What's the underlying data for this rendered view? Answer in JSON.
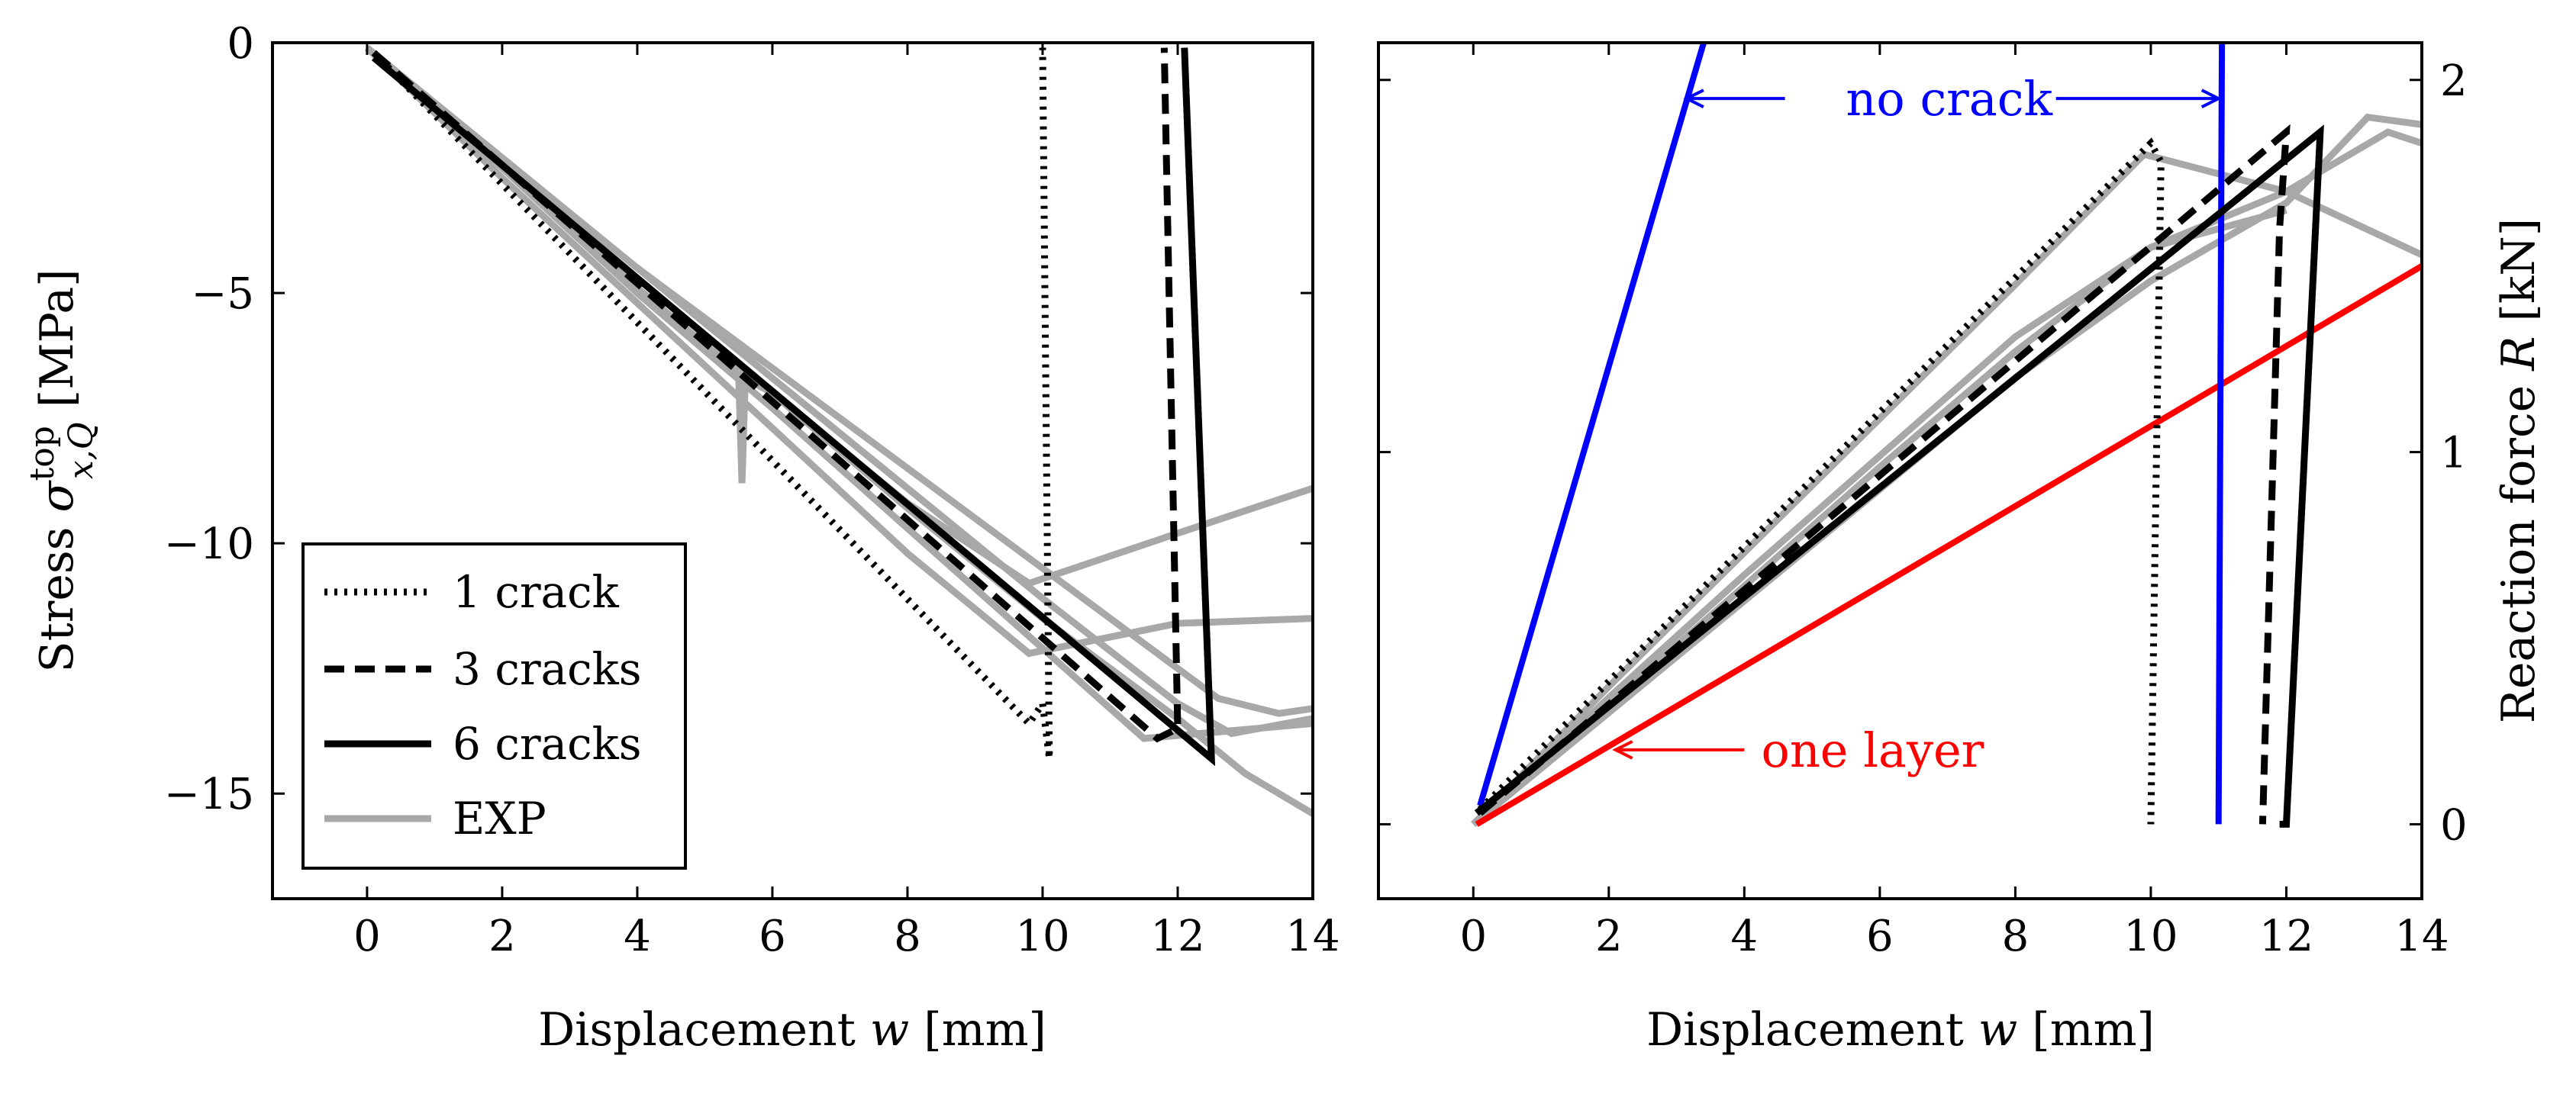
{
  "figure": {
    "description_free": true
  },
  "chart_data": [
    {
      "type": "line",
      "name": "left-panel",
      "xlabel": "Displacement w [mm]",
      "ylabel": "Stress σ top x,Q [MPa]",
      "ylabel_parts": {
        "prefix": "Stress ",
        "symbol": "σ",
        "sup": "top",
        "sub": "x,Q",
        "unit": " [MPa]"
      },
      "xlabel_parts": {
        "prefix": "Displacement ",
        "symbol": "w",
        "unit": " [mm]"
      },
      "xlim": [
        -1.4,
        14
      ],
      "ylim": [
        -17.1,
        0
      ],
      "x_ticks": [
        0,
        2,
        4,
        6,
        8,
        10,
        12,
        14
      ],
      "x_tick_labels": [
        "0",
        "2",
        "4",
        "6",
        "8",
        "10",
        "12",
        "14"
      ],
      "y_ticks": [
        0,
        -5,
        -10,
        -15
      ],
      "y_tick_labels": [
        "0",
        "−5",
        "−10",
        "−15"
      ],
      "legend": {
        "placement": "bottom-left",
        "entries": [
          {
            "label": "1 crack",
            "style": "dotted"
          },
          {
            "label": "3 cracks",
            "style": "dashed"
          },
          {
            "label": "6 cracks",
            "style": "solid"
          },
          {
            "label": "EXP",
            "style": "gray"
          }
        ]
      },
      "series": [
        {
          "name": "EXP 1",
          "style": "gray",
          "x": [
            0,
            2,
            4,
            5.5,
            5.55,
            5.6,
            6,
            8,
            10,
            12,
            13,
            14
          ],
          "y": [
            -0.1,
            -2.5,
            -4.9,
            -6.6,
            -8.8,
            -6.7,
            -7.0,
            -9.3,
            -11.5,
            -13.5,
            -14.6,
            -15.4
          ]
        },
        {
          "name": "EXP 2",
          "style": "gray",
          "x": [
            0,
            2,
            4,
            6,
            8,
            10,
            12,
            12.6,
            13.5,
            14
          ],
          "y": [
            -0.1,
            -2.3,
            -4.5,
            -6.5,
            -8.5,
            -10.5,
            -12.5,
            -13.1,
            -13.4,
            -13.3
          ]
        },
        {
          "name": "EXP 3",
          "style": "gray",
          "x": [
            0,
            2,
            4,
            6,
            8,
            9.8,
            12,
            14
          ],
          "y": [
            -0.1,
            -2.7,
            -5.2,
            -7.7,
            -10.2,
            -12.2,
            -11.6,
            -11.5
          ]
        },
        {
          "name": "EXP 4",
          "style": "gray",
          "x": [
            0,
            2,
            4,
            6,
            8,
            9.8,
            12,
            14
          ],
          "y": [
            -0.1,
            -2.4,
            -4.7,
            -7.0,
            -9.2,
            -10.8,
            -9.8,
            -8.9
          ]
        },
        {
          "name": "EXP 5",
          "style": "gray",
          "x": [
            0,
            2,
            4,
            6,
            8,
            10,
            12,
            12.8,
            14
          ],
          "y": [
            -0.1,
            -2.3,
            -4.5,
            -6.7,
            -8.9,
            -11.1,
            -13.2,
            -13.8,
            -13.5
          ]
        },
        {
          "name": "EXP 6",
          "style": "gray",
          "x": [
            0,
            2,
            4,
            6,
            8,
            10,
            11.5,
            14
          ],
          "y": [
            -0.1,
            -2.5,
            -5.0,
            -7.3,
            -9.7,
            -12.1,
            -13.9,
            -13.6
          ]
        },
        {
          "name": "1 crack",
          "style": "dotted",
          "x": [
            0.1,
            9.8,
            10.0,
            10.1,
            10.1,
            10.0
          ],
          "y": [
            -0.2,
            -13.6,
            -13.2,
            -14.3,
            -14.3,
            -0.1
          ]
        },
        {
          "name": "3 cracks",
          "style": "dashed",
          "x": [
            0.1,
            11.7,
            12.0,
            11.8
          ],
          "y": [
            -0.2,
            -13.9,
            -13.7,
            -0.1
          ]
        },
        {
          "name": "6 cracks",
          "style": "solid",
          "x": [
            0.1,
            12.5,
            12.1
          ],
          "y": [
            -0.3,
            -14.3,
            -0.1
          ]
        }
      ]
    },
    {
      "type": "line",
      "name": "right-panel",
      "xlabel": "Displacement w [mm]",
      "ylabel": "Reaction force R [kN]",
      "ylabel_parts": {
        "prefix": "Reaction force ",
        "symbol": "R",
        "unit": " [kN]"
      },
      "xlabel_parts": {
        "prefix": "Displacement ",
        "symbol": "w",
        "unit": " [mm]"
      },
      "xlim": [
        -1.4,
        14
      ],
      "ylim": [
        -0.2,
        2.1
      ],
      "x_ticks": [
        0,
        2,
        4,
        6,
        8,
        10,
        12,
        14
      ],
      "x_tick_labels": [
        "0",
        "2",
        "4",
        "6",
        "8",
        "10",
        "12",
        "14"
      ],
      "y_ticks": [
        0,
        1,
        2
      ],
      "y_tick_labels": [
        "0",
        "1",
        "2"
      ],
      "annotations": [
        {
          "text": "no crack",
          "color": "#0000ff",
          "x": 5.5,
          "y": 1.95,
          "arrow_from": [
            4.6,
            1.95
          ],
          "arrow_to": [
            3.15,
            1.95
          ],
          "arrow2_from": [
            8.6,
            1.95
          ],
          "arrow2_to": [
            11.0,
            1.95
          ]
        },
        {
          "text": "one layer",
          "color": "#ff0000",
          "x": 4.25,
          "y": 0.2,
          "arrow_from": [
            4.0,
            0.2
          ],
          "arrow_to": [
            2.1,
            0.2
          ]
        }
      ],
      "series": [
        {
          "name": "EXP 1",
          "style": "gray",
          "x": [
            0,
            2,
            4,
            6,
            8,
            10,
            12,
            13.5,
            14
          ],
          "y": [
            0,
            0.34,
            0.67,
            0.99,
            1.31,
            1.55,
            1.7,
            1.86,
            1.83
          ]
        },
        {
          "name": "EXP 2",
          "style": "gray",
          "x": [
            0,
            2,
            4,
            6,
            8,
            10,
            12,
            13.2,
            14
          ],
          "y": [
            0,
            0.3,
            0.6,
            0.9,
            1.2,
            1.46,
            1.67,
            1.9,
            1.88
          ]
        },
        {
          "name": "EXP 3",
          "style": "gray",
          "x": [
            0,
            2,
            4,
            6,
            8,
            9.9,
            12,
            14
          ],
          "y": [
            0,
            0.37,
            0.73,
            1.09,
            1.45,
            1.8,
            1.7,
            1.53
          ]
        },
        {
          "name": "EXP 4",
          "style": "gray",
          "x": [
            0,
            2,
            4,
            6,
            8,
            10,
            12
          ],
          "y": [
            0,
            0.32,
            0.64,
            0.96,
            1.27,
            1.55,
            1.65
          ]
        },
        {
          "name": "no crack",
          "style": "blue",
          "x": [
            0.1,
            3.4
          ],
          "y": [
            0.05,
            2.1
          ]
        },
        {
          "name": "no crack drop",
          "style": "blue",
          "x": [
            11.0,
            11.05
          ],
          "y": [
            0,
            2.1
          ]
        },
        {
          "name": "one layer",
          "style": "red",
          "x": [
            0.05,
            14
          ],
          "y": [
            0.0,
            1.5
          ]
        },
        {
          "name": "1 crack",
          "style": "dotted",
          "x": [
            0.1,
            10.0,
            10.15,
            10.0
          ],
          "y": [
            0.04,
            1.83,
            1.78,
            0.0
          ]
        },
        {
          "name": "3 cracks",
          "style": "dashed",
          "x": [
            0.1,
            12.0,
            11.9,
            11.65
          ],
          "y": [
            0.03,
            1.86,
            1.6,
            0.0
          ]
        },
        {
          "name": "6 cracks",
          "style": "solid",
          "x": [
            0.05,
            12.5,
            12.0,
            11.9
          ],
          "y": [
            0.03,
            1.86,
            0.0,
            0.0
          ]
        }
      ]
    }
  ]
}
